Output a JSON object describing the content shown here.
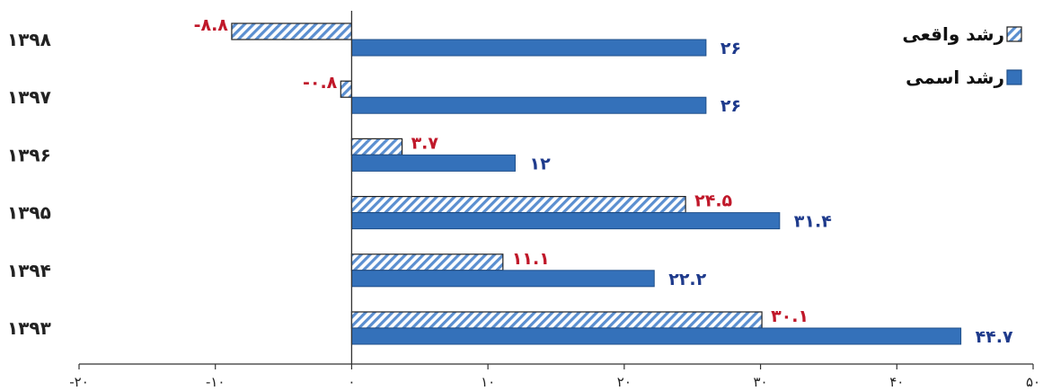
{
  "chart_data": {
    "type": "bar",
    "orientation": "horizontal",
    "categories": [
      "۱۳۹۸",
      "۱۳۹۷",
      "۱۳۹۶",
      "۱۳۹۵",
      "۱۳۹۴",
      "۱۳۹۳"
    ],
    "series": [
      {
        "name": "رشد واقعی",
        "values": [
          -8.8,
          -0.8,
          3.7,
          24.5,
          11.1,
          30.1
        ],
        "labels": [
          "-۸.۸",
          "-۰.۸",
          "۳.۷",
          "۲۴.۵",
          "۱۱.۱",
          "۳۰.۱"
        ],
        "fill": "hatched",
        "color": "#5b8fd0",
        "label_color": "#c0182a"
      },
      {
        "name": "رشد اسمی",
        "values": [
          26,
          26,
          12,
          31.4,
          22.2,
          44.7
        ],
        "labels": [
          "۲۶",
          "۲۶",
          "۱۲",
          "۳۱.۴",
          "۲۲.۲",
          "۴۴.۷"
        ],
        "fill": "solid",
        "color": "#3471ba",
        "label_color": "#1f3b8c"
      }
    ],
    "xlim": [
      -20,
      50
    ],
    "xticks": [
      -20,
      -10,
      0,
      10,
      20,
      30,
      40,
      50
    ],
    "xtick_labels": [
      "-۲۰",
      "-۱۰",
      "۰",
      "۱۰",
      "۲۰",
      "۳۰",
      "۴۰",
      "۵۰"
    ],
    "legend": {
      "placement": "top-right"
    },
    "grid": false,
    "title": "",
    "xlabel": "",
    "ylabel": ""
  }
}
